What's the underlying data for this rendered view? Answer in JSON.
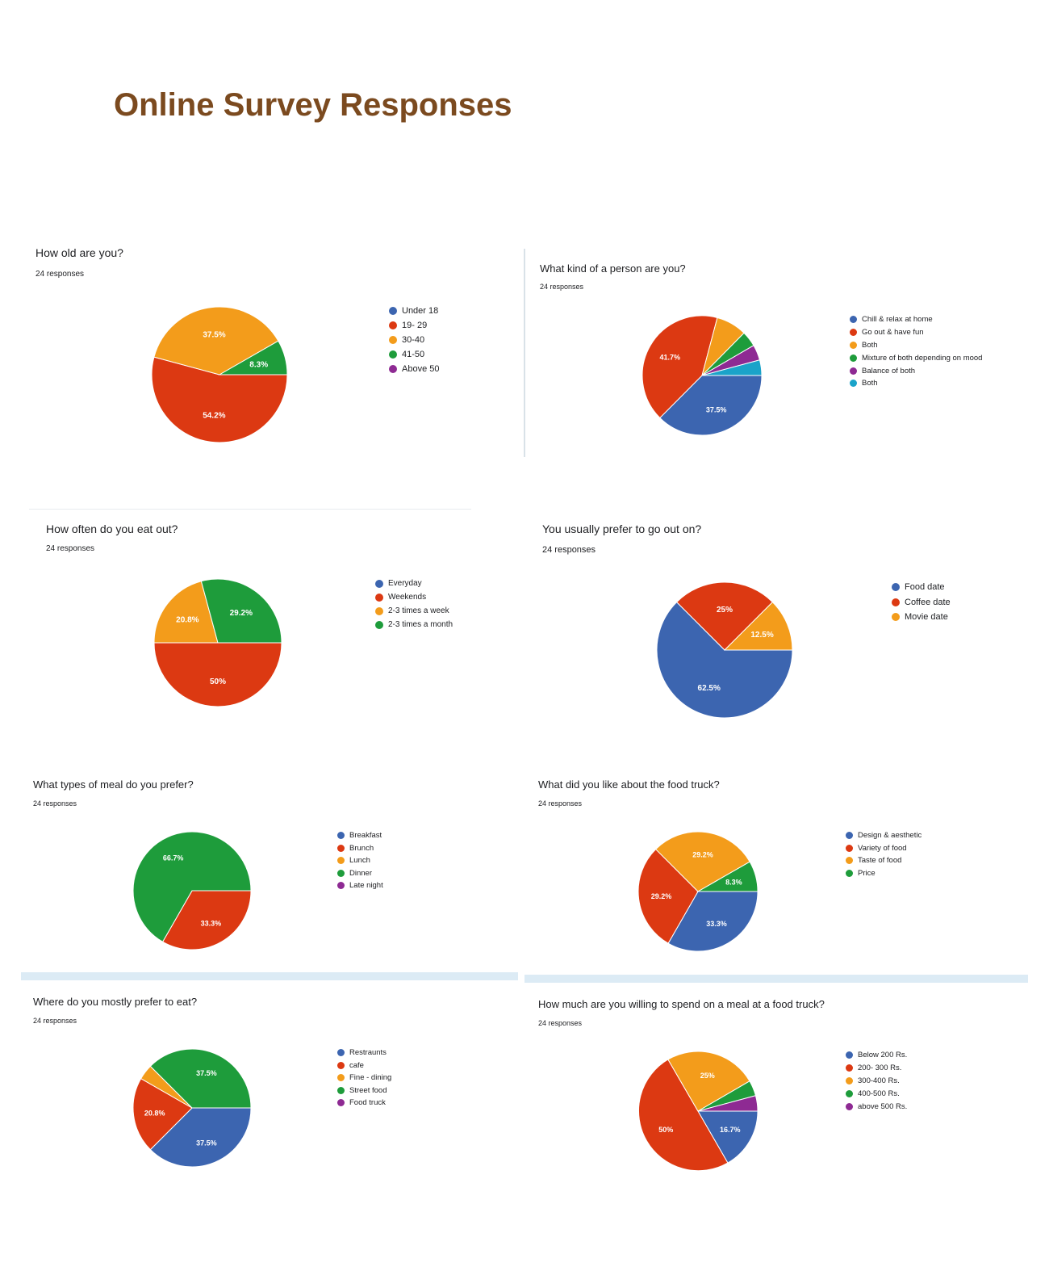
{
  "page": {
    "title": "Online Survey Responses"
  },
  "colors": {
    "blue": "#3c65b0",
    "red": "#dc3912",
    "orange": "#f39c1b",
    "green": "#1e9c3b",
    "purple": "#8e2a93",
    "teal": "#1aa3c9"
  },
  "chart_data": [
    {
      "type": "pie",
      "title": "How old are you?",
      "responses": "24 responses",
      "labels": [
        "Under 18",
        "19- 29",
        "30-40",
        "41-50",
        "Above 50"
      ],
      "values": [
        0,
        54.2,
        37.5,
        8.3,
        0
      ],
      "display": [
        "",
        "54.2%",
        "37.5%",
        "8.3%",
        ""
      ],
      "colors": [
        "#3c65b0",
        "#dc3912",
        "#f39c1b",
        "#1e9c3b",
        "#8e2a93"
      ],
      "legend": "right"
    },
    {
      "type": "pie",
      "title": "What kind of a person are you?",
      "responses": "24 responses",
      "labels": [
        "Chill & relax at home",
        "Go out & have fun",
        "Both",
        "Mixture of both depending on mood",
        "Balance of both",
        "Both"
      ],
      "values": [
        37.5,
        41.7,
        8.3,
        4.2,
        4.2,
        4.2
      ],
      "display": [
        "37.5%",
        "41.7%",
        "",
        "",
        "",
        ""
      ],
      "colors": [
        "#3c65b0",
        "#dc3912",
        "#f39c1b",
        "#1e9c3b",
        "#8e2a93",
        "#1aa3c9"
      ],
      "legend": "right"
    },
    {
      "type": "pie",
      "title": "How often do you eat out?",
      "responses": "24 responses",
      "labels": [
        "Everyday",
        "Weekends",
        "2-3 times a week",
        "2-3 times a month"
      ],
      "values": [
        0,
        50,
        20.8,
        29.2
      ],
      "display": [
        "",
        "50%",
        "20.8%",
        "29.2%"
      ],
      "colors": [
        "#3c65b0",
        "#dc3912",
        "#f39c1b",
        "#1e9c3b"
      ],
      "legend": "right"
    },
    {
      "type": "pie",
      "title": "You usually prefer to go out on?",
      "responses": "24 responses",
      "labels": [
        "Food date",
        "Coffee date",
        "Movie date"
      ],
      "values": [
        62.5,
        25,
        12.5
      ],
      "display": [
        "62.5%",
        "25%",
        "12.5%"
      ],
      "colors": [
        "#3c65b0",
        "#dc3912",
        "#f39c1b"
      ],
      "legend": "right"
    },
    {
      "type": "pie",
      "title": "What types of meal do you prefer?",
      "responses": "24 responses",
      "labels": [
        "Breakfast",
        "Brunch",
        "Lunch",
        "Dinner",
        "Late night"
      ],
      "values": [
        0,
        33.3,
        0,
        66.7,
        0
      ],
      "display": [
        "",
        "33.3%",
        "",
        "66.7%",
        ""
      ],
      "colors": [
        "#3c65b0",
        "#dc3912",
        "#f39c1b",
        "#1e9c3b",
        "#8e2a93"
      ],
      "legend": "right"
    },
    {
      "type": "pie",
      "title": "What did you like about the food truck?",
      "responses": "24 responses",
      "labels": [
        "Design & aesthetic",
        "Variety of food",
        "Taste of food",
        "Price"
      ],
      "values": [
        33.3,
        29.2,
        29.2,
        8.3
      ],
      "display": [
        "33.3%",
        "29.2%",
        "29.2%",
        "8.3%"
      ],
      "colors": [
        "#3c65b0",
        "#dc3912",
        "#f39c1b",
        "#1e9c3b"
      ],
      "legend": "right"
    },
    {
      "type": "pie",
      "title": "Where do you mostly prefer to eat?",
      "responses": "24 responses",
      "labels": [
        "Restraunts",
        "cafe",
        "Fine - dining",
        "Street food",
        "Food truck"
      ],
      "values": [
        37.5,
        20.8,
        4.2,
        37.5,
        0
      ],
      "display": [
        "37.5%",
        "20.8%",
        "",
        "37.5%",
        ""
      ],
      "colors": [
        "#3c65b0",
        "#dc3912",
        "#f39c1b",
        "#1e9c3b",
        "#8e2a93"
      ],
      "legend": "right"
    },
    {
      "type": "pie",
      "title": "How much are you willing to spend on a meal at a food truck?",
      "responses": "24 responses",
      "labels": [
        "Below 200 Rs.",
        "200- 300 Rs.",
        "300-400 Rs.",
        "400-500 Rs.",
        "above 500 Rs."
      ],
      "values": [
        16.7,
        50,
        25,
        4.2,
        4.2
      ],
      "display": [
        "16.7%",
        "50%",
        "25%",
        "",
        ""
      ],
      "colors": [
        "#3c65b0",
        "#dc3912",
        "#f39c1b",
        "#1e9c3b",
        "#8e2a93"
      ],
      "legend": "right"
    }
  ]
}
